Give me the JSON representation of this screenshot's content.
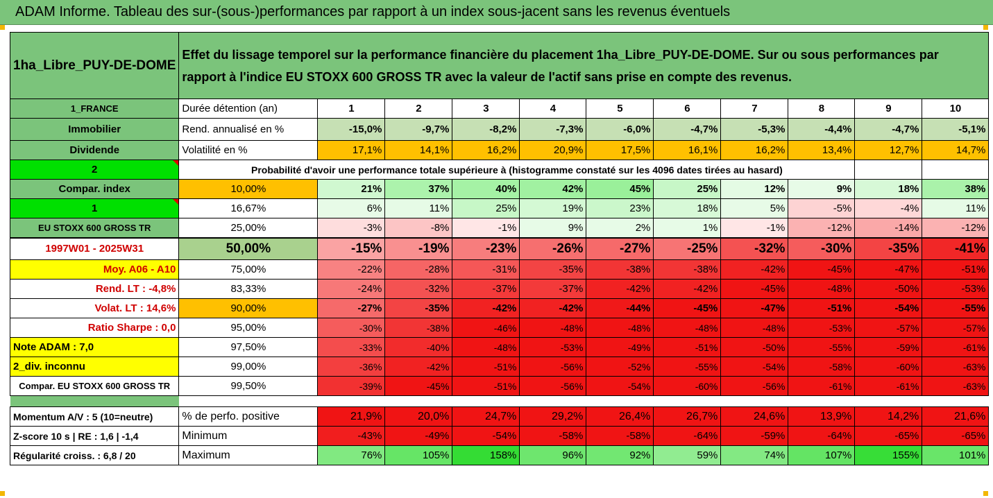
{
  "banner": {
    "title": "ADAM Informe. Tableau des sur-(sous-)performances par rapport à un index sous-jacent sans les revenus éventuels"
  },
  "head": {
    "fund": "1ha_Libre_PUY-DE-DOME",
    "description": "Effet du lissage temporel sur la performance financière du placement 1ha_Libre_PUY-DE-DOME. Sur ou sous performances par rapport à l'indice EU STOXX 600 GROSS TR avec la valeur de l'actif sans prise en compte des revenus."
  },
  "years": [
    "1",
    "2",
    "3",
    "4",
    "5",
    "6",
    "7",
    "8",
    "9",
    "10"
  ],
  "rows": {
    "duration": {
      "side": "1_FRANCE",
      "label": "Durée détention (an)"
    },
    "rend": {
      "side": "Immobilier",
      "label": "Rend. annualisé en %",
      "values": [
        "-15,0%",
        "-9,7%",
        "-8,2%",
        "-7,3%",
        "-6,0%",
        "-4,7%",
        "-5,3%",
        "-4,4%",
        "-4,7%",
        "-5,1%"
      ]
    },
    "volat": {
      "side": "Dividende",
      "label": "Volatilité en %",
      "values": [
        "17,1%",
        "14,1%",
        "16,2%",
        "20,9%",
        "17,5%",
        "16,1%",
        "16,2%",
        "13,4%",
        "12,7%",
        "14,7%"
      ]
    },
    "proba": {
      "side": "2",
      "label": "Probabilité d'avoir une performance totale supérieure à (histogramme constaté sur les 4096 dates tirées au hasard)"
    }
  },
  "side_labels": [
    "Compar. index",
    "1",
    "EU STOXX 600 GROSS TR",
    "1997W01 - 2025W31",
    "Moy. A06 - A10",
    "Rend. LT :   -4,8%",
    "Volat. LT :   14,6%",
    "Ratio Sharpe :   0,0",
    "Note ADAM : 7,0",
    "2_div. inconnu",
    "Compar. EU STOXX 600 GROSS TR"
  ],
  "quantiles": [
    {
      "p": "10,00%",
      "values": [
        "21%",
        "37%",
        "40%",
        "42%",
        "45%",
        "25%",
        "12%",
        "9%",
        "18%",
        "38%"
      ]
    },
    {
      "p": "16,67%",
      "values": [
        "6%",
        "11%",
        "25%",
        "19%",
        "23%",
        "18%",
        "5%",
        "-5%",
        "-4%",
        "11%"
      ]
    },
    {
      "p": "25,00%",
      "values": [
        "-3%",
        "-8%",
        "-1%",
        "9%",
        "2%",
        "1%",
        "-1%",
        "-12%",
        "-14%",
        "-12%"
      ]
    },
    {
      "p": "50,00%",
      "values": [
        "-15%",
        "-19%",
        "-23%",
        "-26%",
        "-27%",
        "-25%",
        "-32%",
        "-30%",
        "-35%",
        "-41%"
      ]
    },
    {
      "p": "75,00%",
      "values": [
        "-22%",
        "-28%",
        "-31%",
        "-35%",
        "-38%",
        "-38%",
        "-42%",
        "-45%",
        "-47%",
        "-51%"
      ]
    },
    {
      "p": "83,33%",
      "values": [
        "-24%",
        "-32%",
        "-37%",
        "-37%",
        "-42%",
        "-42%",
        "-45%",
        "-48%",
        "-50%",
        "-53%"
      ]
    },
    {
      "p": "90,00%",
      "values": [
        "-27%",
        "-35%",
        "-42%",
        "-42%",
        "-44%",
        "-45%",
        "-47%",
        "-51%",
        "-54%",
        "-55%"
      ]
    },
    {
      "p": "95,00%",
      "values": [
        "-30%",
        "-38%",
        "-46%",
        "-48%",
        "-48%",
        "-48%",
        "-48%",
        "-53%",
        "-57%",
        "-57%"
      ]
    },
    {
      "p": "97,50%",
      "values": [
        "-33%",
        "-40%",
        "-48%",
        "-53%",
        "-49%",
        "-51%",
        "-50%",
        "-55%",
        "-59%",
        "-61%"
      ]
    },
    {
      "p": "99,00%",
      "values": [
        "-36%",
        "-42%",
        "-51%",
        "-56%",
        "-52%",
        "-55%",
        "-54%",
        "-58%",
        "-60%",
        "-63%"
      ]
    },
    {
      "p": "99,50%",
      "values": [
        "-39%",
        "-45%",
        "-51%",
        "-56%",
        "-54%",
        "-60%",
        "-56%",
        "-61%",
        "-61%",
        "-63%"
      ]
    }
  ],
  "bottom": [
    {
      "side": "Momentum A/V : 5 (10=neutre)",
      "label": "% de perfo. positive",
      "values": [
        "21,9%",
        "20,0%",
        "24,7%",
        "29,2%",
        "26,4%",
        "26,7%",
        "24,6%",
        "13,9%",
        "14,2%",
        "21,6%"
      ]
    },
    {
      "side": "Z-score 10 s  |  RE : 1,6  |  -1,4",
      "label": "Minimum",
      "values": [
        "-43%",
        "-49%",
        "-54%",
        "-58%",
        "-58%",
        "-64%",
        "-59%",
        "-64%",
        "-65%",
        "-65%"
      ]
    },
    {
      "side": "Régularité croiss. : 6,8 / 20",
      "label": "Maximum",
      "values": [
        "76%",
        "105%",
        "158%",
        "96%",
        "92%",
        "59%",
        "74%",
        "107%",
        "155%",
        "101%"
      ]
    }
  ],
  "colors": {
    "header_green": "#7bc47b",
    "volat_orange": "#ffc000",
    "note_yellow": "#ffff00",
    "flag_green": "#00e000"
  }
}
